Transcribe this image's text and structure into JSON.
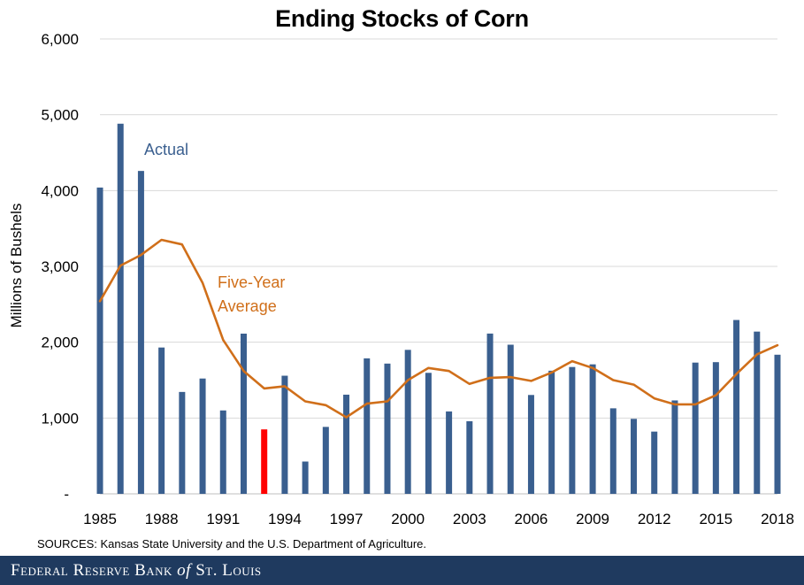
{
  "chart_data": {
    "type": "bar",
    "title": "Ending Stocks of Corn",
    "ylabel": "Millions of Bushels",
    "xlabel": "",
    "ylim": [
      0,
      6000
    ],
    "yticks": [
      0,
      1000,
      2000,
      3000,
      4000,
      5000,
      6000
    ],
    "ytick_labels": [
      "-",
      "1,000",
      "2,000",
      "3,000",
      "4,000",
      "5,000",
      "6,000"
    ],
    "xtick_labels": [
      "1985",
      "1988",
      "1991",
      "1994",
      "1997",
      "2000",
      "2003",
      "2006",
      "2009",
      "2012",
      "2015",
      "2018"
    ],
    "grid": true,
    "categories": [
      "1985",
      "1986",
      "1987",
      "1988",
      "1989",
      "1990",
      "1991",
      "1992",
      "1993",
      "1994",
      "1995",
      "1996",
      "1997",
      "1998",
      "1999",
      "2000",
      "2001",
      "2002",
      "2003",
      "2004",
      "2005",
      "2006",
      "2007",
      "2008",
      "2009",
      "2010",
      "2011",
      "2012",
      "2013",
      "2014",
      "2015",
      "2016",
      "2017",
      "2018"
    ],
    "series": [
      {
        "name": "Actual",
        "kind": "bar",
        "color": "#3a5f8f",
        "highlight_color": "#ff0000",
        "highlight_category": "1993",
        "values": [
          4040,
          4882,
          4259,
          1930,
          1344,
          1521,
          1100,
          2113,
          850,
          1558,
          426,
          883,
          1308,
          1787,
          1718,
          1899,
          1596,
          1087,
          958,
          2114,
          1967,
          1304,
          1624,
          1673,
          1708,
          1128,
          989,
          821,
          1232,
          1731,
          1737,
          2293,
          2140,
          1835
        ]
      },
      {
        "name": "Five-Year Average",
        "kind": "line",
        "color": "#d06f1a",
        "values": [
          2540,
          3010,
          3150,
          3350,
          3290,
          2780,
          2030,
          1620,
          1390,
          1420,
          1220,
          1170,
          1010,
          1190,
          1220,
          1500,
          1660,
          1620,
          1450,
          1530,
          1540,
          1490,
          1600,
          1750,
          1660,
          1500,
          1440,
          1260,
          1180,
          1180,
          1300,
          1580,
          1840,
          1960
        ]
      }
    ],
    "annotations": {
      "actual_label": "Actual",
      "avg_label_line1": "Five-Year",
      "avg_label_line2": "Average"
    }
  },
  "source_text": "SOURCES: Kansas State University and the U.S. Department of Agriculture.",
  "footer": {
    "brand_part1": "Federal Reserve Bank ",
    "brand_of": "of",
    "brand_part2": " St. Louis"
  }
}
